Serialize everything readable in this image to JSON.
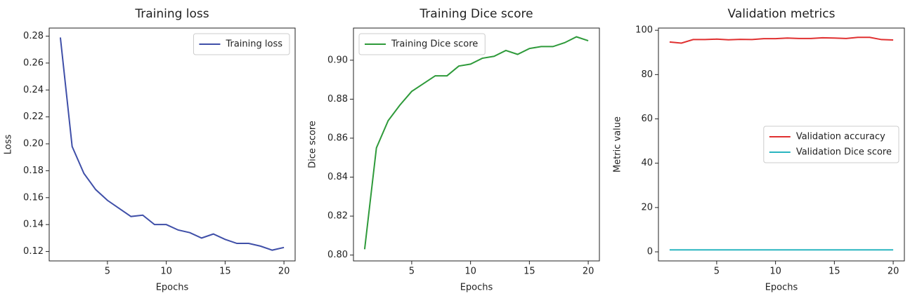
{
  "chart_data": [
    {
      "type": "line",
      "title": "Training loss",
      "x_label": "Epochs",
      "y_label": "Loss",
      "x": [
        1,
        2,
        3,
        4,
        5,
        6,
        7,
        8,
        9,
        10,
        11,
        12,
        13,
        14,
        15,
        16,
        17,
        18,
        19,
        20
      ],
      "series": [
        {
          "name": "Training loss",
          "color": "#3f4fa8",
          "values": [
            0.279,
            0.198,
            0.178,
            0.166,
            0.158,
            0.152,
            0.146,
            0.147,
            0.14,
            0.14,
            0.136,
            0.134,
            0.13,
            0.133,
            0.129,
            0.126,
            0.126,
            0.124,
            0.121,
            0.123
          ]
        }
      ],
      "xlim": [
        0.05,
        20.95
      ],
      "ylim": [
        0.113,
        0.286
      ],
      "xticks": [
        5,
        10,
        15,
        20
      ],
      "yticks": [
        0.12,
        0.14,
        0.16,
        0.18,
        {
          "value": 0.2,
          "label": "0.20"
        },
        0.22,
        0.24,
        0.26,
        0.28
      ],
      "legend": "upper right"
    },
    {
      "type": "line",
      "title": "Training Dice score",
      "x_label": "Epochs",
      "y_label": "Dice score",
      "x": [
        1,
        2,
        3,
        4,
        5,
        6,
        7,
        8,
        9,
        10,
        11,
        12,
        13,
        14,
        15,
        16,
        17,
        18,
        19,
        20
      ],
      "series": [
        {
          "name": "Training Dice score",
          "color": "#2e9a3a",
          "values": [
            0.803,
            0.855,
            0.869,
            0.877,
            0.884,
            0.888,
            0.892,
            0.892,
            0.897,
            0.898,
            0.901,
            0.902,
            0.905,
            0.903,
            0.906,
            0.907,
            0.907,
            0.909,
            0.912,
            0.91
          ]
        }
      ],
      "xlim": [
        0.05,
        20.95
      ],
      "ylim": [
        0.797,
        0.9165
      ],
      "xticks": [
        5,
        10,
        15,
        20
      ],
      "yticks": [
        {
          "value": 0.8,
          "label": "0.80"
        },
        0.82,
        0.84,
        0.86,
        0.88,
        {
          "value": 0.9,
          "label": "0.90"
        }
      ],
      "legend": "upper left"
    },
    {
      "type": "line",
      "title": "Validation metrics",
      "x_label": "Epochs",
      "y_label": "Metric value",
      "x": [
        1,
        2,
        3,
        4,
        5,
        6,
        7,
        8,
        9,
        10,
        11,
        12,
        13,
        14,
        15,
        16,
        17,
        18,
        19,
        20
      ],
      "series": [
        {
          "name": "Validation accuracy",
          "color": "#e03030",
          "values": [
            94.7,
            94.2,
            95.8,
            95.8,
            96.0,
            95.7,
            95.9,
            95.8,
            96.2,
            96.2,
            96.5,
            96.3,
            96.3,
            96.6,
            96.5,
            96.3,
            96.8,
            96.8,
            95.8,
            95.6
          ]
        },
        {
          "name": "Validation Dice score",
          "color": "#2ab5c0",
          "values": [
            0.9,
            0.9,
            0.9,
            0.9,
            0.9,
            0.9,
            0.9,
            0.9,
            0.9,
            0.9,
            0.9,
            0.9,
            0.9,
            0.9,
            0.9,
            0.9,
            0.9,
            0.9,
            0.9,
            0.9
          ]
        }
      ],
      "xlim": [
        0.05,
        20.95
      ],
      "ylim": [
        -4.1,
        101
      ],
      "xticks": [
        5,
        10,
        15,
        20
      ],
      "yticks": [
        0,
        20,
        40,
        60,
        80,
        100
      ],
      "legend": "center right"
    }
  ]
}
